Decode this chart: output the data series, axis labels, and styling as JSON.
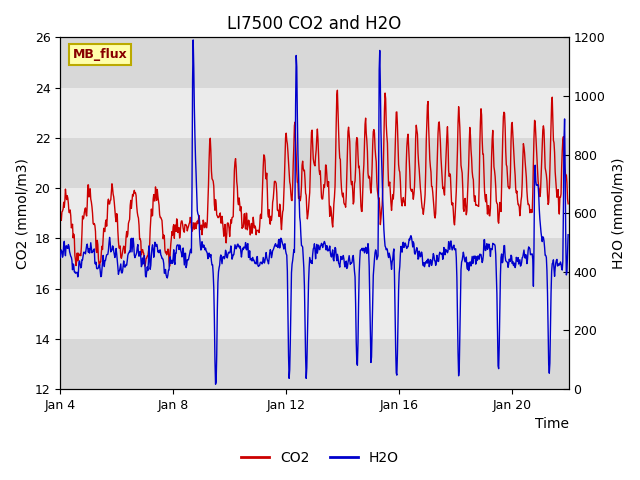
{
  "title": "LI7500 CO2 and H2O",
  "xlabel": "Time",
  "ylabel_left": "CO2 (mmol/m3)",
  "ylabel_right": "H2O (mmol/m3)",
  "ylim_left": [
    12,
    26
  ],
  "ylim_right": [
    0,
    1200
  ],
  "yticks_left": [
    12,
    14,
    16,
    18,
    20,
    22,
    24,
    26
  ],
  "yticks_right": [
    0,
    200,
    400,
    600,
    800,
    1000,
    1200
  ],
  "xtick_days": [
    4,
    8,
    12,
    16,
    20
  ],
  "co2_color": "#CC0000",
  "h2o_color": "#0000CC",
  "plot_bg": "#EBEBEB",
  "band_dark": "#D8D8D8",
  "band_light": "#EBEBEB",
  "annotation_text": "MB_flux",
  "annotation_bg": "#FFFFAA",
  "annotation_border": "#BBAA00",
  "annotation_text_color": "#880000",
  "title_fontsize": 12,
  "label_fontsize": 10,
  "tick_fontsize": 9,
  "legend_fontsize": 10,
  "seed": 7
}
